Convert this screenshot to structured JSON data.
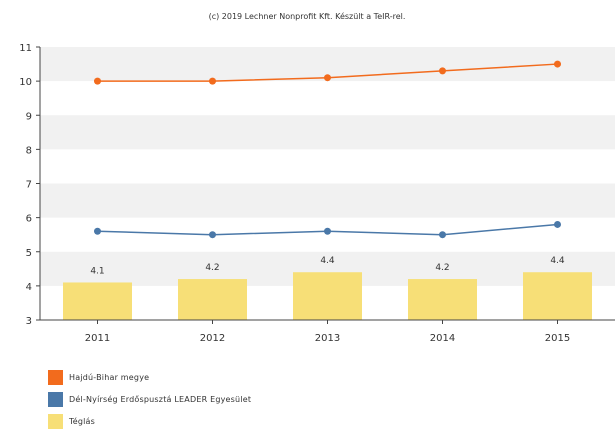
{
  "title": "(c) 2019 Lechner Nonprofit Kft. Készült a TeIR-rel.",
  "chart_data": {
    "type": "bar+line",
    "categories": [
      "2011",
      "2012",
      "2013",
      "2014",
      "2015"
    ],
    "ylim": [
      3,
      11
    ],
    "yticks": [
      3,
      4,
      5,
      6,
      7,
      8,
      9,
      10,
      11
    ],
    "grid": "alternating horizontal bands",
    "legend_position": "bottom-left",
    "series": [
      {
        "name": "Hajdú-Bihar megye",
        "type": "line",
        "color": "#f26b1d",
        "values": [
          10.0,
          10.0,
          10.1,
          10.3,
          10.5
        ]
      },
      {
        "name": "Dél-Nyírség Erdőspusztá LEADER Egyesület",
        "type": "line",
        "color": "#4a78a8",
        "values": [
          5.6,
          5.5,
          5.6,
          5.5,
          5.8
        ]
      },
      {
        "name": "Téglás",
        "type": "bar",
        "color": "#f7df77",
        "values": [
          4.1,
          4.2,
          4.4,
          4.2,
          4.4
        ],
        "data_labels": [
          "4.1",
          "4.2",
          "4.4",
          "4.2",
          "4.4"
        ]
      }
    ]
  }
}
